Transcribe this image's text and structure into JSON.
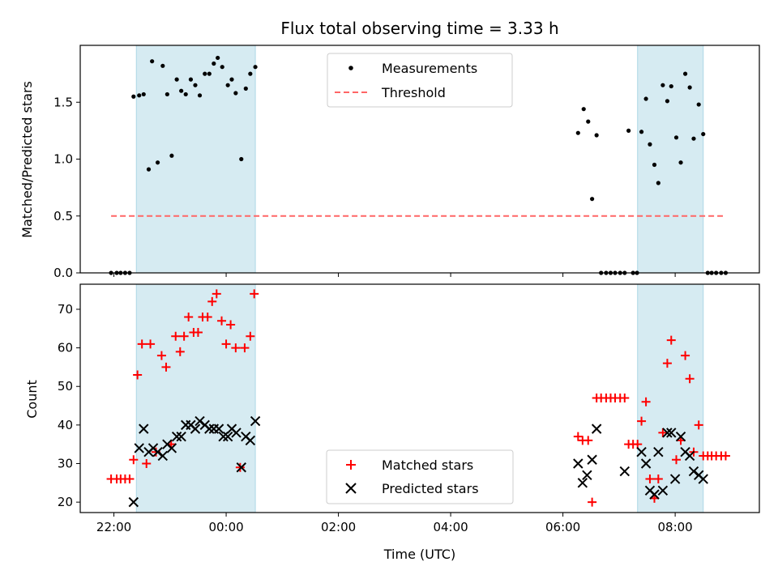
{
  "chart_data": {
    "title": "Flux total observing time = 3.33 h",
    "xlabel": "Time (UTC)",
    "x_ticks": [
      "22:00",
      "00:00",
      "02:00",
      "04:00",
      "06:00",
      "08:00"
    ],
    "x_range_hours": [
      -2.6,
      9.5
    ],
    "shaded_intervals_hours": [
      [
        -1.6,
        0.52
      ],
      [
        7.33,
        8.5
      ]
    ],
    "colors": {
      "shade": "#add8e6",
      "threshold": "#ff6666",
      "matched": "#ff0000",
      "predicted": "#000000",
      "measurement": "#000000"
    },
    "charts": [
      {
        "type": "scatter",
        "ylabel": "Matched/Predicted stars",
        "ylim": [
          0,
          2.0
        ],
        "y_ticks": [
          0.0,
          0.5,
          1.0,
          1.5
        ],
        "y_tick_labels": [
          "0.0",
          "0.5",
          "1.0",
          "1.5"
        ],
        "legend_placement": "top-center",
        "legend": [
          "Measurements",
          "Threshold"
        ],
        "threshold": {
          "value": 0.5,
          "x_range": [
            -2.05,
            8.85
          ]
        },
        "measurements": [
          [
            -2.05,
            0
          ],
          [
            -1.95,
            0
          ],
          [
            -1.88,
            0
          ],
          [
            -1.8,
            0
          ],
          [
            -1.72,
            0
          ],
          [
            -1.65,
            1.55
          ],
          [
            -1.55,
            1.56
          ],
          [
            -1.47,
            1.57
          ],
          [
            -1.38,
            0.91
          ],
          [
            -1.32,
            1.86
          ],
          [
            -1.22,
            0.97
          ],
          [
            -1.13,
            1.82
          ],
          [
            -1.05,
            1.57
          ],
          [
            -0.97,
            1.03
          ],
          [
            -0.88,
            1.7
          ],
          [
            -0.8,
            1.6
          ],
          [
            -0.72,
            1.57
          ],
          [
            -0.63,
            1.7
          ],
          [
            -0.55,
            1.65
          ],
          [
            -0.47,
            1.56
          ],
          [
            -0.38,
            1.75
          ],
          [
            -0.3,
            1.75
          ],
          [
            -0.22,
            1.84
          ],
          [
            -0.15,
            1.89
          ],
          [
            -0.07,
            1.81
          ],
          [
            0.03,
            1.65
          ],
          [
            0.1,
            1.7
          ],
          [
            0.17,
            1.58
          ],
          [
            0.27,
            1.0
          ],
          [
            0.35,
            1.62
          ],
          [
            0.43,
            1.75
          ],
          [
            0.52,
            1.81
          ],
          [
            6.27,
            1.23
          ],
          [
            6.37,
            1.44
          ],
          [
            6.45,
            1.33
          ],
          [
            6.52,
            0.65
          ],
          [
            6.6,
            1.21
          ],
          [
            6.68,
            0
          ],
          [
            6.77,
            0
          ],
          [
            6.85,
            0
          ],
          [
            6.93,
            0
          ],
          [
            7.02,
            0
          ],
          [
            7.1,
            0
          ],
          [
            7.17,
            1.25
          ],
          [
            7.25,
            0
          ],
          [
            7.32,
            0
          ],
          [
            7.4,
            1.24
          ],
          [
            7.48,
            1.53
          ],
          [
            7.55,
            1.13
          ],
          [
            7.63,
            0.95
          ],
          [
            7.7,
            0.79
          ],
          [
            7.78,
            1.65
          ],
          [
            7.86,
            1.51
          ],
          [
            7.93,
            1.64
          ],
          [
            8.02,
            1.19
          ],
          [
            8.1,
            0.97
          ],
          [
            8.18,
            1.75
          ],
          [
            8.26,
            1.63
          ],
          [
            8.33,
            1.18
          ],
          [
            8.42,
            1.48
          ],
          [
            8.5,
            1.22
          ],
          [
            8.58,
            0
          ],
          [
            8.65,
            0
          ],
          [
            8.73,
            0
          ],
          [
            8.82,
            0
          ],
          [
            8.9,
            0
          ]
        ]
      },
      {
        "type": "scatter",
        "ylabel": "Count",
        "ylim": [
          17.3,
          76.5
        ],
        "y_ticks": [
          20,
          30,
          40,
          50,
          60,
          70
        ],
        "y_tick_labels": [
          "20",
          "30",
          "40",
          "50",
          "60",
          "70"
        ],
        "legend_placement": "bottom-center",
        "legend": [
          "Matched stars",
          "Predicted stars"
        ],
        "matched": [
          [
            -2.05,
            26
          ],
          [
            -1.95,
            26
          ],
          [
            -1.88,
            26
          ],
          [
            -1.8,
            26
          ],
          [
            -1.72,
            26
          ],
          [
            -1.65,
            31
          ],
          [
            -1.58,
            53
          ],
          [
            -1.5,
            61
          ],
          [
            -1.42,
            30
          ],
          [
            -1.35,
            61
          ],
          [
            -1.25,
            33
          ],
          [
            -1.15,
            58
          ],
          [
            -1.07,
            55
          ],
          [
            -0.98,
            35
          ],
          [
            -0.9,
            63
          ],
          [
            -0.82,
            59
          ],
          [
            -0.75,
            63
          ],
          [
            -0.67,
            68
          ],
          [
            -0.58,
            64
          ],
          [
            -0.5,
            64
          ],
          [
            -0.42,
            68
          ],
          [
            -0.33,
            68
          ],
          [
            -0.25,
            72
          ],
          [
            -0.17,
            74
          ],
          [
            -0.08,
            67
          ],
          [
            0.0,
            61
          ],
          [
            0.08,
            66
          ],
          [
            0.17,
            60
          ],
          [
            0.25,
            29
          ],
          [
            0.33,
            60
          ],
          [
            0.43,
            63
          ],
          [
            0.5,
            74
          ],
          [
            6.27,
            37
          ],
          [
            6.35,
            36
          ],
          [
            6.45,
            36
          ],
          [
            6.52,
            20
          ],
          [
            6.6,
            47
          ],
          [
            6.68,
            47
          ],
          [
            6.77,
            47
          ],
          [
            6.85,
            47
          ],
          [
            6.93,
            47
          ],
          [
            7.02,
            47
          ],
          [
            7.1,
            47
          ],
          [
            7.17,
            35
          ],
          [
            7.25,
            35
          ],
          [
            7.33,
            35
          ],
          [
            7.4,
            41
          ],
          [
            7.48,
            46
          ],
          [
            7.55,
            26
          ],
          [
            7.63,
            21
          ],
          [
            7.7,
            26
          ],
          [
            7.78,
            38
          ],
          [
            7.86,
            56
          ],
          [
            7.93,
            62
          ],
          [
            8.02,
            31
          ],
          [
            8.1,
            36
          ],
          [
            8.18,
            58
          ],
          [
            8.26,
            52
          ],
          [
            8.33,
            33
          ],
          [
            8.42,
            40
          ],
          [
            8.5,
            32
          ],
          [
            8.58,
            32
          ],
          [
            8.65,
            32
          ],
          [
            8.73,
            32
          ],
          [
            8.82,
            32
          ],
          [
            8.9,
            32
          ]
        ],
        "predicted": [
          [
            -1.65,
            20
          ],
          [
            -1.55,
            34
          ],
          [
            -1.47,
            39
          ],
          [
            -1.38,
            33
          ],
          [
            -1.3,
            34
          ],
          [
            -1.22,
            33
          ],
          [
            -1.13,
            32
          ],
          [
            -1.05,
            35
          ],
          [
            -0.97,
            34
          ],
          [
            -0.88,
            37
          ],
          [
            -0.8,
            37
          ],
          [
            -0.72,
            40
          ],
          [
            -0.63,
            40
          ],
          [
            -0.55,
            39
          ],
          [
            -0.47,
            41
          ],
          [
            -0.38,
            40
          ],
          [
            -0.3,
            39
          ],
          [
            -0.22,
            39
          ],
          [
            -0.13,
            39
          ],
          [
            -0.05,
            37
          ],
          [
            0.03,
            37
          ],
          [
            0.1,
            39
          ],
          [
            0.18,
            38
          ],
          [
            0.27,
            29
          ],
          [
            0.35,
            37
          ],
          [
            0.43,
            36
          ],
          [
            0.52,
            41
          ],
          [
            6.27,
            30
          ],
          [
            6.35,
            25
          ],
          [
            6.43,
            27
          ],
          [
            6.52,
            31
          ],
          [
            6.6,
            39
          ],
          [
            7.1,
            28
          ],
          [
            7.4,
            33
          ],
          [
            7.48,
            30
          ],
          [
            7.55,
            23
          ],
          [
            7.63,
            22
          ],
          [
            7.7,
            33
          ],
          [
            7.78,
            23
          ],
          [
            7.86,
            38
          ],
          [
            7.93,
            38
          ],
          [
            8.0,
            26
          ],
          [
            8.1,
            37
          ],
          [
            8.18,
            33
          ],
          [
            8.26,
            32
          ],
          [
            8.33,
            28
          ],
          [
            8.42,
            27
          ],
          [
            8.5,
            26
          ]
        ]
      }
    ]
  }
}
